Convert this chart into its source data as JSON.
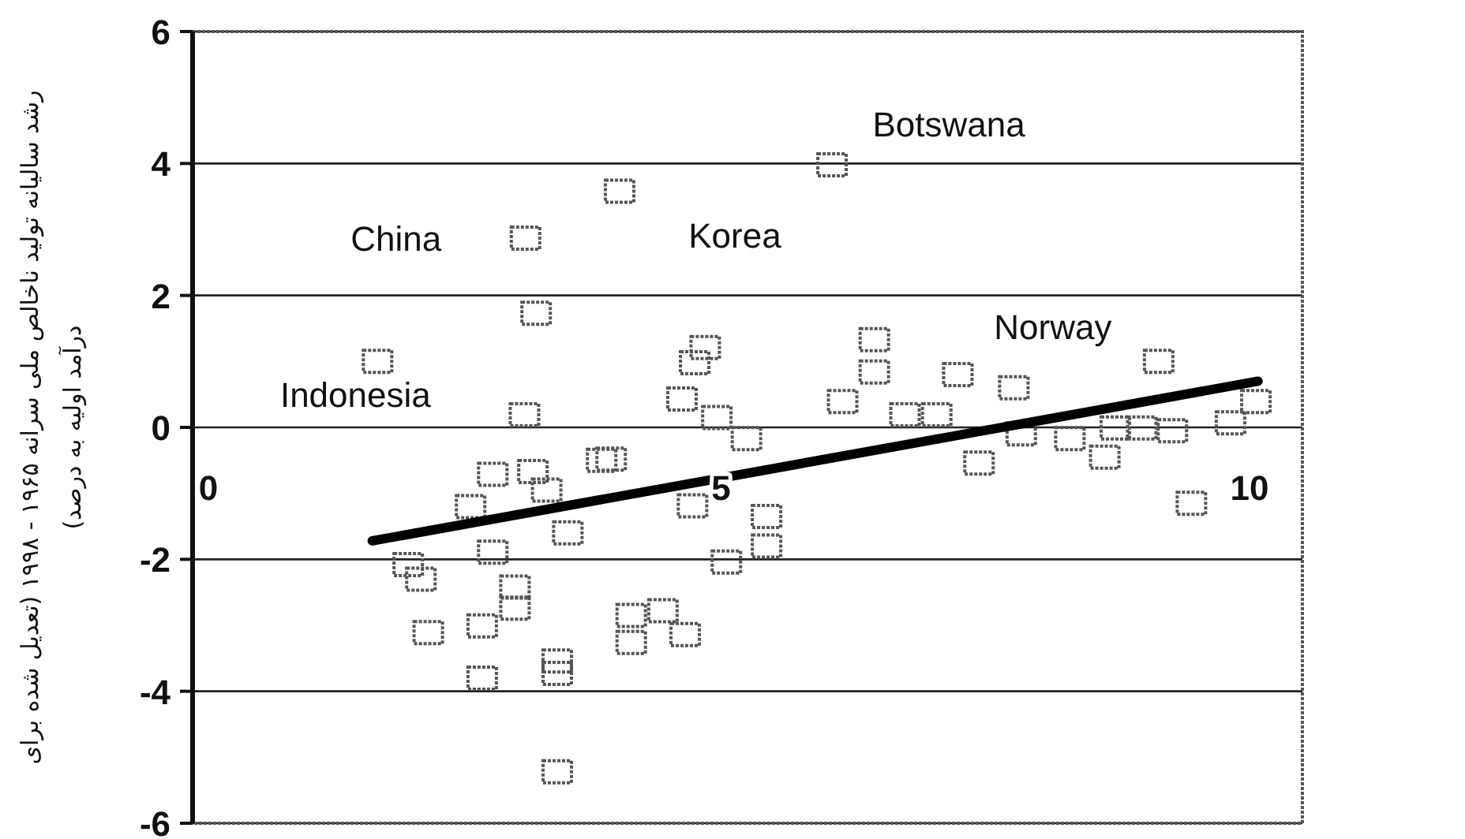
{
  "chart_data": {
    "type": "scatter",
    "ylabel": "رشد سالیانه تولید ناخالص ملی سرانه ۱۹۶۵ - ۱۹۹۸ (تعدیل شده برای درآمد اولیه به درصد)",
    "xlim": [
      0,
      10.5
    ],
    "xticks": [
      0,
      5,
      10
    ],
    "ylim": [
      -6,
      6
    ],
    "yticks": [
      -6,
      -4,
      -2,
      0,
      2,
      4,
      6
    ],
    "grid": "y",
    "series": [
      {
        "marker": "square",
        "color": "#555555",
        "x": [
          1.75,
          3.15,
          3.25,
          3.14,
          4.04,
          6.05,
          2.84,
          3.22,
          3.35,
          2.63,
          2.84,
          3.55,
          3.87,
          3.96,
          2.04,
          2.16,
          3.05,
          3.05,
          2.23,
          2.74,
          2.74,
          3.45,
          3.45,
          3.45,
          4.85,
          4.75,
          4.63,
          4.96,
          5.24,
          4.73,
          5.43,
          5.43,
          5.05,
          4.15,
          4.15,
          4.45,
          4.66,
          6.45,
          6.45,
          6.15,
          6.74,
          7.04,
          7.24,
          7.77,
          7.44,
          7.84,
          8.3,
          8.63,
          8.73,
          8.98,
          9.27,
          9.14,
          9.45,
          9.82,
          10.06
        ],
        "values": [
          1.0,
          2.87,
          1.73,
          0.19,
          3.58,
          3.98,
          -0.71,
          -0.67,
          -0.95,
          -1.2,
          -1.89,
          -1.6,
          -0.5,
          -0.48,
          -2.08,
          -2.3,
          -2.42,
          -2.74,
          -3.11,
          -3.01,
          -3.8,
          -3.54,
          -3.73,
          -5.22,
          1.21,
          0.98,
          0.43,
          0.15,
          -0.17,
          -1.19,
          -1.35,
          -1.8,
          -2.04,
          -2.85,
          -3.26,
          -2.78,
          -3.14,
          1.33,
          0.84,
          0.39,
          0.19,
          0.19,
          0.8,
          0.6,
          -0.54,
          -0.1,
          -0.17,
          -0.45,
          -0.01,
          -0.01,
          -0.05,
          1.0,
          -1.15,
          0.07,
          0.39
        ]
      },
      {
        "type": "line",
        "color": "#000000",
        "line_style": "solid",
        "x": [
          1.7,
          10.08
        ],
        "values": [
          -1.72,
          0.7
        ]
      }
    ],
    "annotations": [
      {
        "text": "Botswana",
        "x": 6.05,
        "y": 3.98
      },
      {
        "text": "China",
        "x": 3.15,
        "y": 2.87
      },
      {
        "text": "Korea",
        "x": 4.04,
        "y": 3.58
      },
      {
        "text": "Norway",
        "x": 9.14,
        "y": 1.0
      },
      {
        "text": "Indonesia",
        "x": 1.75,
        "y": 1.0
      }
    ]
  }
}
